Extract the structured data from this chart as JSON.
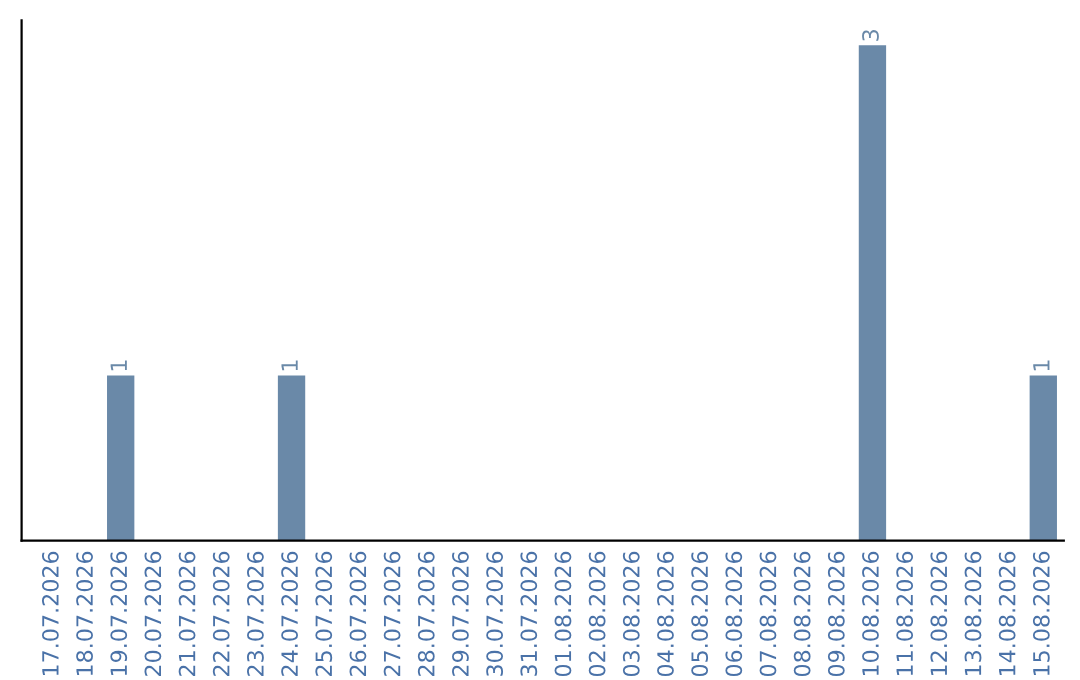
{
  "chart_data": {
    "type": "bar",
    "categories": [
      "17.07.2026",
      "18.07.2026",
      "19.07.2026",
      "20.07.2026",
      "21.07.2026",
      "22.07.2026",
      "23.07.2026",
      "24.07.2026",
      "25.07.2026",
      "26.07.2026",
      "27.07.2026",
      "28.07.2026",
      "29.07.2026",
      "30.07.2026",
      "31.07.2026",
      "01.08.2026",
      "02.08.2026",
      "03.08.2026",
      "04.08.2026",
      "05.08.2026",
      "06.08.2026",
      "07.08.2026",
      "08.08.2026",
      "09.08.2026",
      "10.08.2026",
      "11.08.2026",
      "12.08.2026",
      "13.08.2026",
      "14.08.2026",
      "15.08.2026"
    ],
    "values": [
      0,
      0,
      1,
      0,
      0,
      0,
      0,
      1,
      0,
      0,
      0,
      0,
      0,
      0,
      0,
      0,
      0,
      0,
      0,
      0,
      0,
      0,
      0,
      0,
      3,
      0,
      0,
      0,
      0,
      1
    ],
    "value_labels": [
      null,
      null,
      "1",
      null,
      null,
      null,
      null,
      "1",
      null,
      null,
      null,
      null,
      null,
      null,
      null,
      null,
      null,
      null,
      null,
      null,
      null,
      null,
      null,
      null,
      "3",
      null,
      null,
      null,
      null,
      "1"
    ],
    "color": "#6a89a8",
    "tick_labels": "x",
    "grid": false
  }
}
